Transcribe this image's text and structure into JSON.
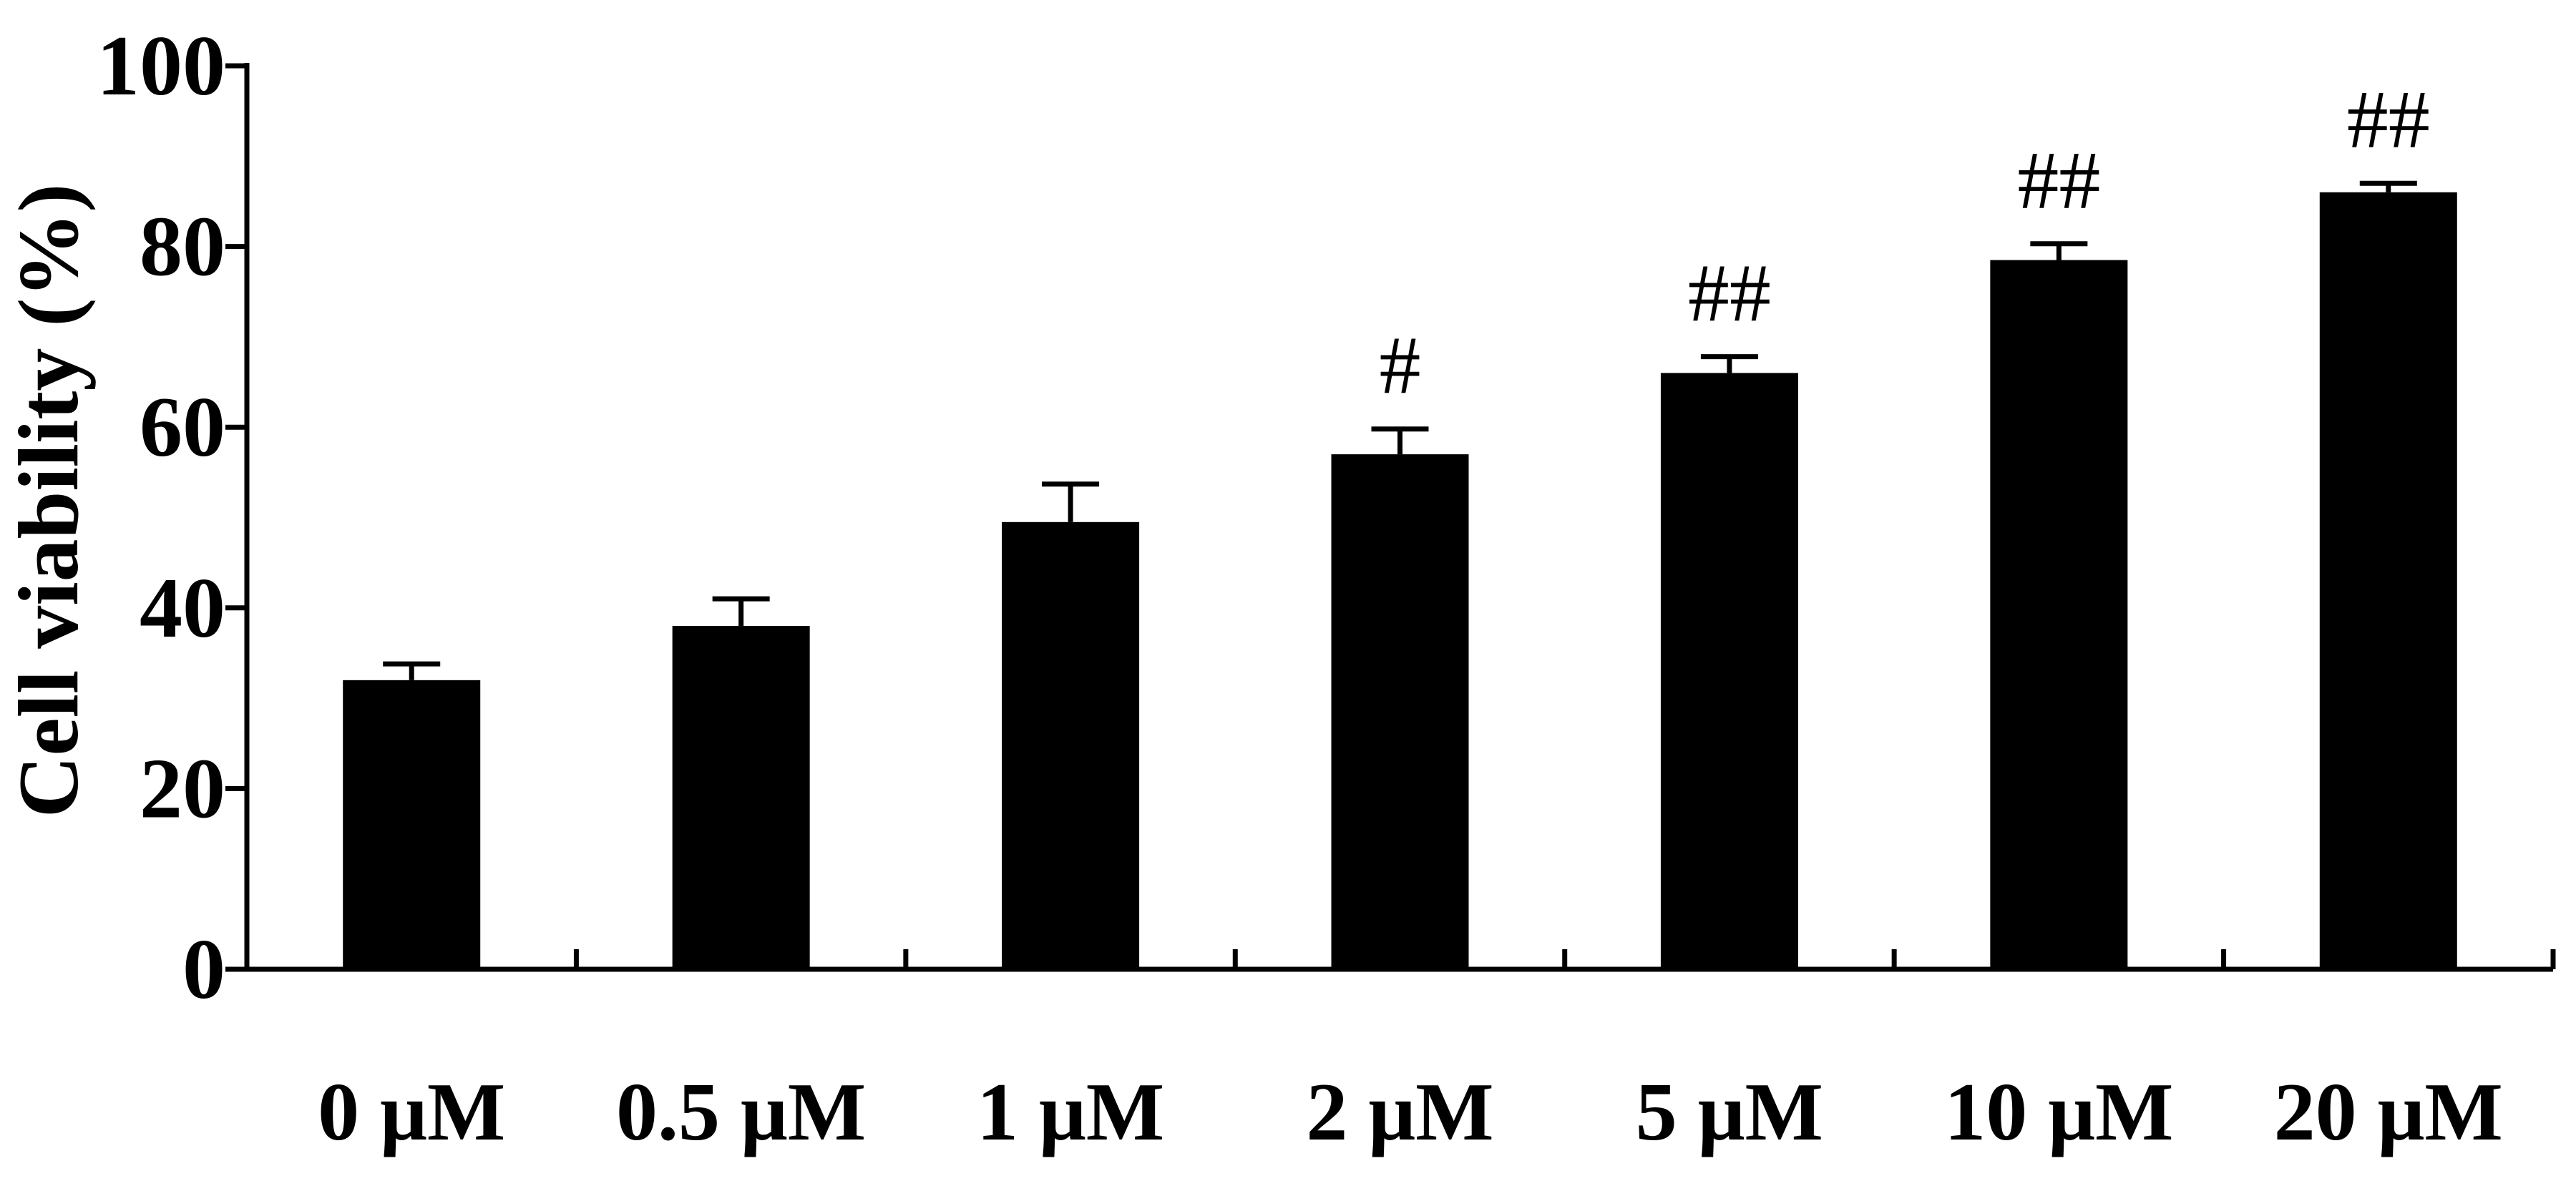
{
  "chart_data": {
    "type": "bar",
    "title": "",
    "xlabel": "",
    "ylabel": "Cell viability (%)",
    "ylim": [
      0,
      100
    ],
    "yticks": [
      "0",
      "20",
      "40",
      "60",
      "80",
      "100"
    ],
    "categories": [
      "0 μM",
      "0.5 μM",
      "1 μM",
      "2 μM",
      "5 μM",
      "10 μM",
      "20 μM"
    ],
    "values": [
      32,
      38,
      49.5,
      57,
      66,
      78.5,
      86
    ],
    "errors": [
      1.8,
      3,
      4.2,
      2.8,
      1.8,
      1.8,
      1
    ],
    "annotations": [
      "",
      "",
      "",
      "#",
      "##",
      "##",
      "##"
    ],
    "bar_color": "#000000",
    "grid": false,
    "legend": "none"
  }
}
